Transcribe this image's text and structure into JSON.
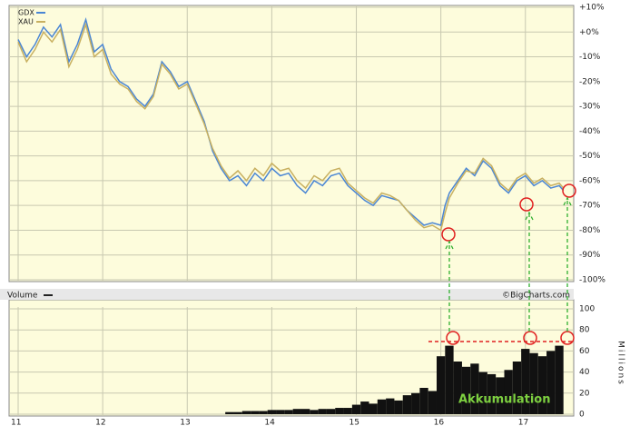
{
  "chart_data": [
    {
      "type": "line",
      "x": [
        11.0,
        11.1,
        11.2,
        11.3,
        11.4,
        11.5,
        11.6,
        11.7,
        11.8,
        11.9,
        12.0,
        12.1,
        12.2,
        12.3,
        12.4,
        12.5,
        12.6,
        12.7,
        12.8,
        12.9,
        13.0,
        13.1,
        13.2,
        13.3,
        13.4,
        13.5,
        13.6,
        13.7,
        13.8,
        13.9,
        14.0,
        14.1,
        14.2,
        14.3,
        14.4,
        14.5,
        14.6,
        14.7,
        14.8,
        14.9,
        15.0,
        15.1,
        15.2,
        15.3,
        15.4,
        15.5,
        15.6,
        15.7,
        15.8,
        15.9,
        16.0,
        16.05,
        16.1,
        16.2,
        16.3,
        16.4,
        16.5,
        16.6,
        16.7,
        16.8,
        16.9,
        17.0,
        17.1,
        17.2,
        17.3,
        17.4,
        17.45
      ],
      "series": [
        {
          "name": "GDX",
          "color": "#4a86d4",
          "values": [
            -3,
            -10,
            -5,
            2,
            -2,
            3,
            -12,
            -5,
            5,
            -8,
            -5,
            -15,
            -20,
            -22,
            -27,
            -30,
            -25,
            -12,
            -16,
            -22,
            -20,
            -28,
            -36,
            -48,
            -55,
            -60,
            -58,
            -62,
            -57,
            -60,
            -55,
            -58,
            -57,
            -62,
            -65,
            -60,
            -62,
            -58,
            -57,
            -62,
            -65,
            -68,
            -70,
            -66,
            -67,
            -68,
            -72,
            -75,
            -78,
            -77,
            -78,
            -70,
            -65,
            -60,
            -55,
            -58,
            -52,
            -55,
            -62,
            -65,
            -60,
            -58,
            -62,
            -60,
            -63,
            -62,
            -64
          ]
        },
        {
          "name": "XAU",
          "color": "#c8b060",
          "values": [
            -4,
            -12,
            -7,
            0,
            -4,
            1,
            -14,
            -7,
            3,
            -10,
            -7,
            -17,
            -21,
            -23,
            -28,
            -31,
            -26,
            -13,
            -17,
            -23,
            -21,
            -29,
            -37,
            -47,
            -54,
            -59,
            -56,
            -60,
            -55,
            -58,
            -53,
            -56,
            -55,
            -60,
            -63,
            -58,
            -60,
            -56,
            -55,
            -61,
            -64,
            -67,
            -69,
            -65,
            -66,
            -68,
            -72,
            -76,
            -79,
            -78,
            -80,
            -73,
            -67,
            -61,
            -56,
            -57,
            -51,
            -54,
            -61,
            -64,
            -59,
            -57,
            -61,
            -59,
            -62,
            -61,
            -63
          ]
        }
      ],
      "xlim": [
        11,
        17.55
      ],
      "xticks": [
        11,
        12,
        13,
        14,
        15,
        16,
        17
      ],
      "ylim": [
        -100,
        10
      ],
      "yticks": [
        {
          "value": 10,
          "label": "+10%"
        },
        {
          "value": 0,
          "label": "+0%"
        },
        {
          "value": -10,
          "label": "-10%"
        },
        {
          "value": -20,
          "label": "-20%"
        },
        {
          "value": -30,
          "label": "-30%"
        },
        {
          "value": -40,
          "label": "-40%"
        },
        {
          "value": -50,
          "label": "-50%"
        },
        {
          "value": -60,
          "label": "-60%"
        },
        {
          "value": -70,
          "label": "-70%"
        },
        {
          "value": -80,
          "label": "-80%"
        },
        {
          "value": -90,
          "label": "-90%"
        },
        {
          "value": -100,
          "label": "-100%"
        }
      ],
      "grid": true,
      "source": "©BigCharts.com"
    },
    {
      "type": "bar",
      "title": "Volume",
      "color": "#111111",
      "ylabel": "Millions",
      "annotation": "Akkumulation",
      "x": [
        13.5,
        13.6,
        13.7,
        13.8,
        13.9,
        14.0,
        14.1,
        14.2,
        14.3,
        14.4,
        14.5,
        14.6,
        14.7,
        14.8,
        14.9,
        15.0,
        15.1,
        15.2,
        15.3,
        15.4,
        15.5,
        15.6,
        15.7,
        15.8,
        15.9,
        16.0,
        16.1,
        16.2,
        16.3,
        16.4,
        16.5,
        16.6,
        16.7,
        16.8,
        16.9,
        17.0,
        17.1,
        17.2,
        17.3,
        17.4
      ],
      "values": [
        2,
        2,
        3,
        3,
        3,
        4,
        4,
        4,
        5,
        5,
        4,
        5,
        5,
        6,
        6,
        9,
        12,
        10,
        14,
        15,
        13,
        18,
        20,
        25,
        22,
        55,
        65,
        50,
        45,
        48,
        40,
        38,
        35,
        42,
        50,
        62,
        58,
        55,
        60,
        65
      ],
      "xlim": [
        11,
        17.55
      ],
      "xticks": [
        11,
        12,
        13,
        14,
        15,
        16,
        17
      ],
      "ylim": [
        0,
        100
      ],
      "yticks": [
        0,
        20,
        40,
        60,
        80,
        100
      ],
      "grid": true
    }
  ]
}
